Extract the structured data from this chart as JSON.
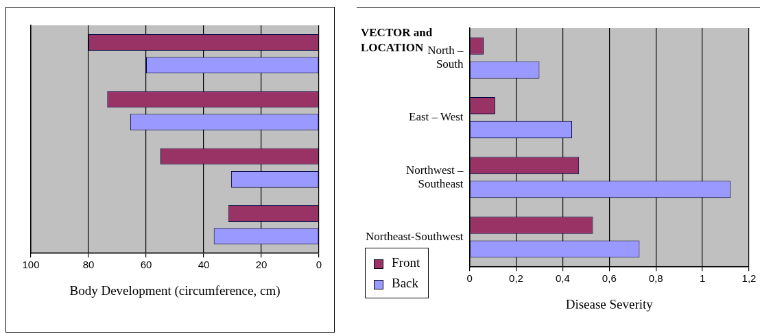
{
  "chart_data": [
    {
      "type": "bar",
      "orientation": "horizontal",
      "xlabel": "Body Development (circumference, cm)",
      "categories": [
        null,
        null,
        null,
        null
      ],
      "series": [
        {
          "color": "#993366",
          "values": [
            80,
            73.5,
            55,
            31.5
          ]
        },
        {
          "color": "#9999ff",
          "values": [
            60,
            65.5,
            30.5,
            36.5
          ]
        }
      ],
      "xlim": [
        100,
        0
      ],
      "xticks": [
        100,
        80,
        60,
        40,
        20,
        0
      ],
      "grid": "x",
      "tick_labels": "x"
    },
    {
      "type": "bar",
      "orientation": "horizontal",
      "xlabel": "Disease Severity",
      "ylabel": "VECTOR and LOCATION",
      "categories": [
        "North – South",
        "East – West",
        "Northwest – Southeast",
        "Northeast-Southwest"
      ],
      "series": [
        {
          "name": "Front",
          "color": "#993366",
          "values": [
            0.06,
            0.11,
            0.47,
            0.53
          ]
        },
        {
          "name": "Back",
          "color": "#9999ff",
          "values": [
            0.3,
            0.44,
            1.12,
            0.73
          ]
        }
      ],
      "xlim": [
        0,
        1.2
      ],
      "xticks": [
        {
          "value": 0,
          "label": "0"
        },
        {
          "value": 0.2,
          "label": "0,2"
        },
        {
          "value": 0.4,
          "label": "0,4"
        },
        {
          "value": 0.6,
          "label": "0,6"
        },
        {
          "value": 0.8,
          "label": "0,8"
        },
        {
          "value": 1,
          "label": "1"
        },
        {
          "value": 1.2,
          "label": "1,2"
        }
      ],
      "grid": "x",
      "legend": "bottom left"
    }
  ]
}
